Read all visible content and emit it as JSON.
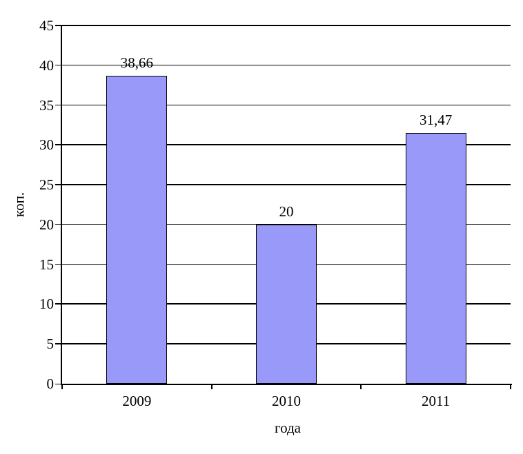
{
  "chart_data": {
    "type": "bar",
    "categories": [
      "2009",
      "2010",
      "2011"
    ],
    "values": [
      38.66,
      20,
      31.47
    ],
    "value_labels": [
      "38,66",
      "20",
      "31,47"
    ],
    "title": "",
    "xlabel": "года",
    "ylabel": "коп.",
    "ylim": [
      0,
      45
    ],
    "ytick_step": 5,
    "yticks": [
      "0",
      "5",
      "10",
      "15",
      "20",
      "25",
      "30",
      "35",
      "40",
      "45"
    ],
    "grid": true,
    "legend": false,
    "colors": {
      "bar_fill": "#9999FA",
      "bar_border": "#000000",
      "gridline": "#000000",
      "axis": "#000000",
      "background": "#FFFFFF",
      "text": "#000000"
    }
  }
}
